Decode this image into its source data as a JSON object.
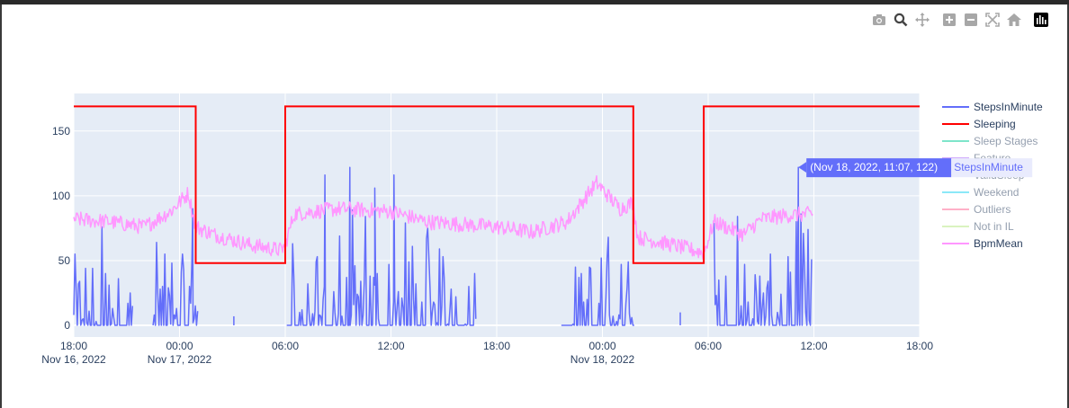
{
  "modebar": {
    "buttons": [
      {
        "icon": "camera-icon",
        "title": "Download plot as a png"
      },
      {
        "icon": "zoom-icon",
        "title": "Zoom"
      },
      {
        "icon": "pan-icon",
        "title": "Pan"
      },
      {
        "icon": "zoom-in-icon",
        "title": "Zoom in"
      },
      {
        "icon": "zoom-out-icon",
        "title": "Zoom out"
      },
      {
        "icon": "autoscale-icon",
        "title": "Autoscale"
      },
      {
        "icon": "reset-axes-icon",
        "title": "Reset axes"
      },
      {
        "icon": "plotly-logo-icon",
        "title": "Produced with Plotly"
      }
    ]
  },
  "chart_data": {
    "type": "line",
    "background": "#e5ecf6",
    "grid": true,
    "legend_position": "right",
    "xaxis": {
      "type": "date",
      "range": [
        "2022-11-16 18:00",
        "2022-11-18 18:00"
      ],
      "ticks": [
        {
          "value": "2022-11-16 18:00",
          "label": "18:00",
          "sublabel": "Nov 16, 2022"
        },
        {
          "value": "2022-11-17 00:00",
          "label": "00:00",
          "sublabel": "Nov 17, 2022"
        },
        {
          "value": "2022-11-17 06:00",
          "label": "06:00",
          "sublabel": ""
        },
        {
          "value": "2022-11-17 12:00",
          "label": "12:00",
          "sublabel": ""
        },
        {
          "value": "2022-11-17 18:00",
          "label": "18:00",
          "sublabel": ""
        },
        {
          "value": "2022-11-18 00:00",
          "label": "00:00",
          "sublabel": "Nov 18, 2022"
        },
        {
          "value": "2022-11-18 06:00",
          "label": "06:00",
          "sublabel": ""
        },
        {
          "value": "2022-11-18 12:00",
          "label": "12:00",
          "sublabel": ""
        },
        {
          "value": "2022-11-18 18:00",
          "label": "18:00",
          "sublabel": ""
        }
      ]
    },
    "yaxis": {
      "range": [
        -9,
        179
      ],
      "ticks": [
        0,
        50,
        100,
        150
      ]
    },
    "series": [
      {
        "name": "StepsInMinute",
        "color": "#636efa",
        "visible": true,
        "active": [
          [
            "2022-11-16 18:00",
            "2022-11-16 21:20"
          ],
          [
            "2022-11-16 22:30",
            "2022-11-17 01:05"
          ],
          [
            "2022-11-17 06:05",
            "2022-11-17 16:50"
          ],
          [
            "2022-11-17 21:40",
            "2022-11-18 01:50"
          ],
          [
            "2022-11-18 06:20",
            "2022-11-18 11:55"
          ]
        ],
        "scattered": [
          [
            "2022-11-17 03:05",
            7
          ],
          [
            "2022-11-18 04:25",
            10
          ]
        ],
        "peaks": [
          [
            "2022-11-17 00:45",
            90
          ],
          [
            "2022-11-17 08:15",
            116
          ],
          [
            "2022-11-17 09:40",
            122
          ],
          [
            "2022-11-17 11:05",
            106
          ],
          [
            "2022-11-17 12:10",
            116
          ],
          [
            "2022-11-18 11:07",
            122
          ]
        ]
      },
      {
        "name": "Sleeping",
        "color": "#ff0000",
        "visible": true,
        "points": [
          [
            "2022-11-16 18:00",
            169
          ],
          [
            "2022-11-17 00:55",
            169
          ],
          [
            "2022-11-17 00:55",
            48
          ],
          [
            "2022-11-17 06:00",
            48
          ],
          [
            "2022-11-17 06:00",
            169
          ],
          [
            "2022-11-18 01:45",
            169
          ],
          [
            "2022-11-18 01:45",
            48
          ],
          [
            "2022-11-18 05:45",
            48
          ],
          [
            "2022-11-18 05:45",
            169
          ],
          [
            "2022-11-18 18:00",
            169
          ]
        ]
      },
      {
        "name": "Sleep Stages",
        "color": "#00cc96",
        "visible": false
      },
      {
        "name": "Feature",
        "color": "#ab63fa",
        "visible": false
      },
      {
        "name": "ValidSleep",
        "color": "#ffa15a",
        "visible": false
      },
      {
        "name": "Weekend",
        "color": "#19d3f3",
        "visible": false
      },
      {
        "name": "Outliers",
        "color": "#ff6692",
        "visible": false
      },
      {
        "name": "Not in IL",
        "color": "#b6e880",
        "visible": false
      },
      {
        "name": "BpmMean",
        "color": "#ff97ff",
        "visible": true,
        "anchors": [
          [
            "2022-11-16 18:00",
            82
          ],
          [
            "2022-11-16 20:00",
            80
          ],
          [
            "2022-11-16 22:00",
            76
          ],
          [
            "2022-11-16 23:30",
            88
          ],
          [
            "2022-11-17 00:30",
            102
          ],
          [
            "2022-11-17 00:55",
            76
          ],
          [
            "2022-11-17 02:00",
            70
          ],
          [
            "2022-11-17 04:00",
            62
          ],
          [
            "2022-11-17 05:45",
            58
          ],
          [
            "2022-11-17 06:00",
            62
          ],
          [
            "2022-11-17 06:30",
            86
          ],
          [
            "2022-11-17 09:00",
            90
          ],
          [
            "2022-11-17 12:00",
            88
          ],
          [
            "2022-11-17 14:00",
            80
          ],
          [
            "2022-11-17 18:00",
            76
          ],
          [
            "2022-11-17 20:00",
            72
          ],
          [
            "2022-11-17 22:00",
            80
          ],
          [
            "2022-11-17 23:40",
            110
          ],
          [
            "2022-11-18 01:00",
            90
          ],
          [
            "2022-11-18 01:45",
            95
          ],
          [
            "2022-11-18 02:00",
            68
          ],
          [
            "2022-11-18 04:00",
            62
          ],
          [
            "2022-11-18 05:45",
            56
          ],
          [
            "2022-11-18 06:20",
            80
          ],
          [
            "2022-11-18 08:00",
            70
          ],
          [
            "2022-11-18 09:00",
            82
          ],
          [
            "2022-11-18 10:30",
            85
          ],
          [
            "2022-11-18 11:55",
            86
          ]
        ]
      }
    ],
    "hover": {
      "text": "(Nov 18, 2022, 11:07, 122)",
      "series": "StepsInMinute",
      "x": "2022-11-18 11:07",
      "y": 122
    }
  }
}
